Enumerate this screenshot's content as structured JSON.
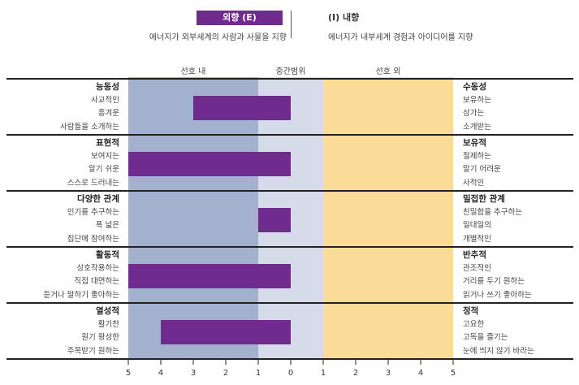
{
  "header": {
    "extravert_title": "외향 (E)",
    "extravert_desc": "에너지가 외부세계의 사람과 사물을 지향",
    "introvert_title": "(I) 내향",
    "introvert_desc": "에너지가 내부세계 경험과 아이디어를 지향"
  },
  "zones": {
    "left": "선호 내",
    "middle": "중간범위",
    "right": "선호 외"
  },
  "colors": {
    "left_zone": "#a3b1cf",
    "middle_zone": "#d6dbe9",
    "right_zone": "#fadb98",
    "bar": "#6f2b8e",
    "rule": "#222222"
  },
  "chart_data": {
    "type": "bar",
    "orientation": "horizontal",
    "xlim": [
      -5,
      5
    ],
    "ticks": [
      "5",
      "4",
      "3",
      "2",
      "1",
      "0",
      "1",
      "2",
      "3",
      "4",
      "5"
    ],
    "categories": [
      {
        "left_title": "능동성",
        "left_items": [
          "사교적인",
          "흥겨운",
          "사람들을 소개하는"
        ],
        "right_title": "수동성",
        "right_items": [
          "보유하는",
          "삼가는",
          "소개받는"
        ],
        "value": -3
      },
      {
        "left_title": "표현적",
        "left_items": [
          "보여지는",
          "알기 쉬운",
          "스스로 드러내는"
        ],
        "right_title": "보유적",
        "right_items": [
          "절제하는",
          "알기 어려운",
          "사적인"
        ],
        "value": -5
      },
      {
        "left_title": "다양한 관계",
        "left_items": [
          "인기를 추구하는",
          "폭 넓은",
          "집단에 참여하는"
        ],
        "right_title": "밀접한 관계",
        "right_items": [
          "친밀함을 추구하는",
          "일대일의",
          "개별적인"
        ],
        "value": -1
      },
      {
        "left_title": "활동적",
        "left_items": [
          "상호작용하는",
          "직접 대면하는",
          "듣거나 말하기 좋아하는"
        ],
        "right_title": "반추적",
        "right_items": [
          "관조적인",
          "거리를 두기 원하는",
          "읽거나 쓰기 좋아하는"
        ],
        "value": -5
      },
      {
        "left_title": "열성적",
        "left_items": [
          "활기찬",
          "원기 왕성한",
          "주목받기 원하는"
        ],
        "right_title": "정적",
        "right_items": [
          "고요한",
          "고독을 즐기는",
          "눈에 띄지 않기 바라는"
        ],
        "value": -4
      }
    ]
  }
}
